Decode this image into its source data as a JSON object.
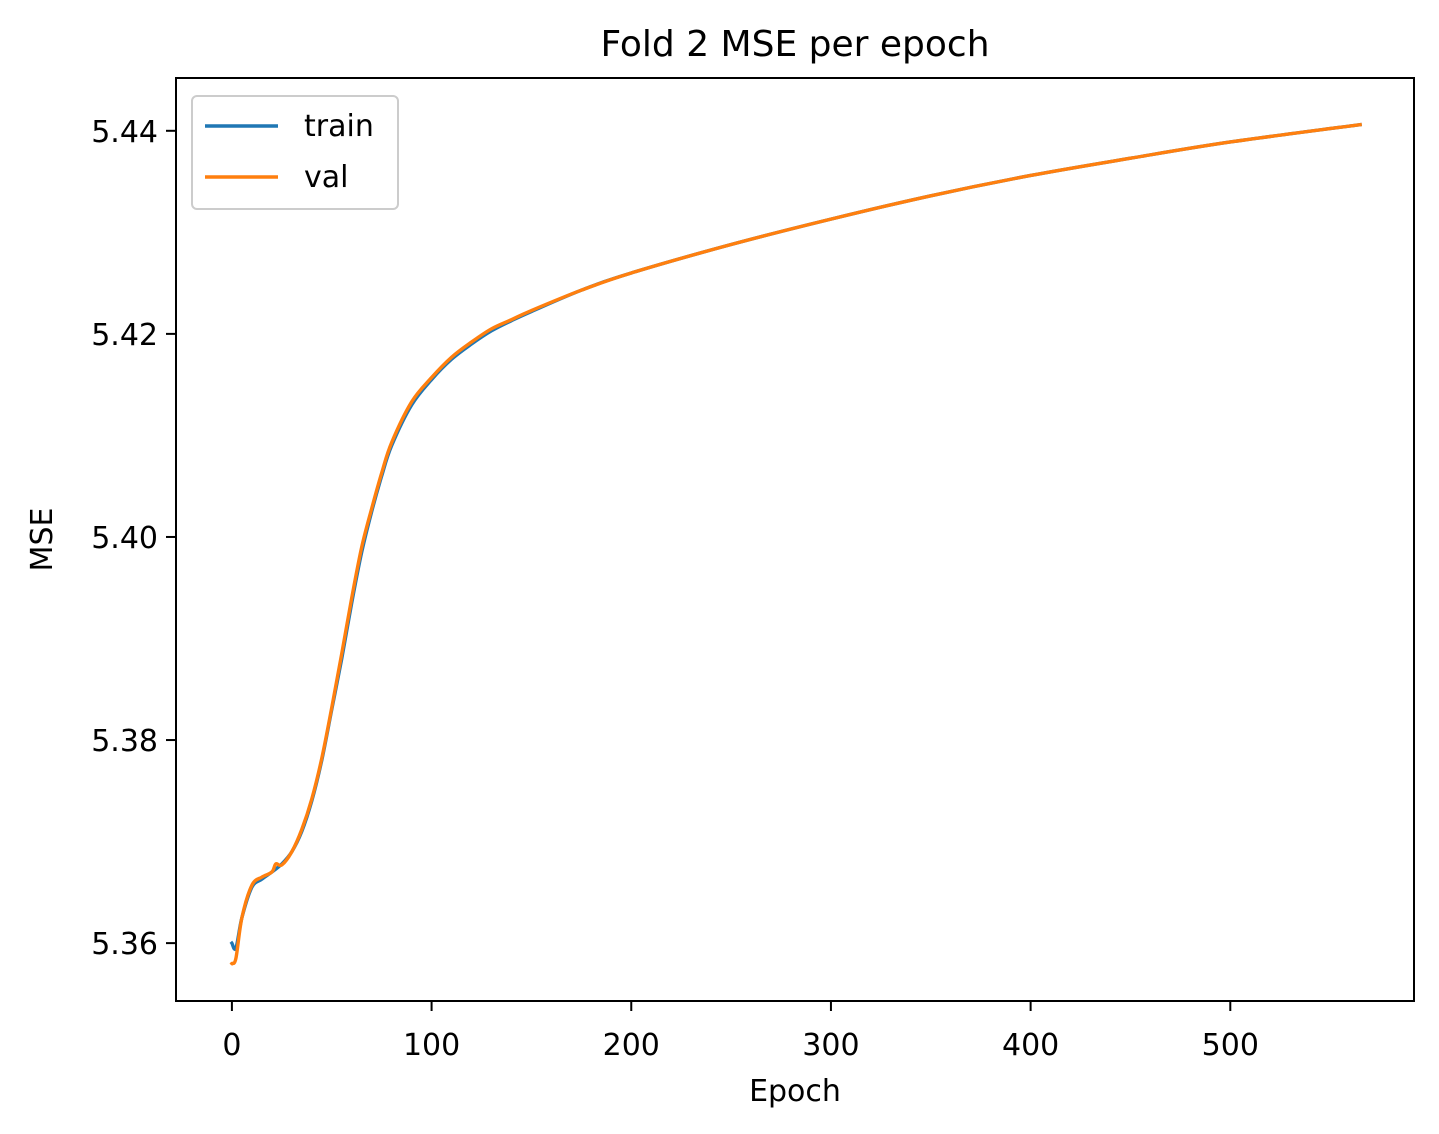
{
  "chart_data": {
    "type": "line",
    "title": "Fold 2 MSE per epoch",
    "xlabel": "Epoch",
    "ylabel": "MSE",
    "xlim": [
      -28,
      592
    ],
    "ylim": [
      5.3543,
      5.4452
    ],
    "xticks": [
      0,
      100,
      200,
      300,
      400,
      500
    ],
    "yticks": [
      5.36,
      5.38,
      5.4,
      5.42,
      5.44
    ],
    "ytick_labels": [
      "5.36",
      "5.38",
      "5.40",
      "5.42",
      "5.44"
    ],
    "grid": false,
    "legend": {
      "placement": "top-left"
    },
    "series": [
      {
        "name": "train",
        "color": "#1f77b4",
        "x": [
          0,
          2,
          5,
          10,
          15,
          20,
          25,
          30,
          35,
          40,
          45,
          50,
          55,
          60,
          65,
          70,
          75,
          80,
          90,
          100,
          110,
          120,
          130,
          140,
          150,
          175,
          200,
          250,
          300,
          350,
          400,
          450,
          500,
          565
        ],
        "y": [
          5.36,
          5.3595,
          5.3625,
          5.3655,
          5.3663,
          5.367,
          5.3678,
          5.369,
          5.371,
          5.374,
          5.378,
          5.383,
          5.388,
          5.3935,
          5.3985,
          5.4025,
          5.406,
          5.409,
          5.413,
          5.4155,
          5.4175,
          5.419,
          5.4203,
          5.4213,
          5.4222,
          5.4243,
          5.426,
          5.4288,
          5.4313,
          5.4336,
          5.4356,
          5.4373,
          5.4389,
          5.4406
        ]
      },
      {
        "name": "val",
        "color": "#ff7f0e",
        "x": [
          0,
          2,
          5,
          10,
          15,
          20,
          22,
          25,
          30,
          35,
          40,
          45,
          50,
          55,
          60,
          65,
          70,
          75,
          80,
          90,
          100,
          110,
          120,
          130,
          140,
          150,
          175,
          200,
          250,
          300,
          350,
          400,
          450,
          500,
          565
        ],
        "y": [
          5.358,
          5.3585,
          5.3625,
          5.3657,
          5.3665,
          5.367,
          5.3678,
          5.3677,
          5.369,
          5.3712,
          5.3742,
          5.3782,
          5.3832,
          5.3885,
          5.394,
          5.399,
          5.4028,
          5.4063,
          5.4093,
          5.4133,
          5.4157,
          5.4177,
          5.4192,
          5.4205,
          5.4214,
          5.4223,
          5.4243,
          5.426,
          5.4288,
          5.4313,
          5.4336,
          5.4356,
          5.4373,
          5.4389,
          5.4406
        ]
      }
    ]
  }
}
